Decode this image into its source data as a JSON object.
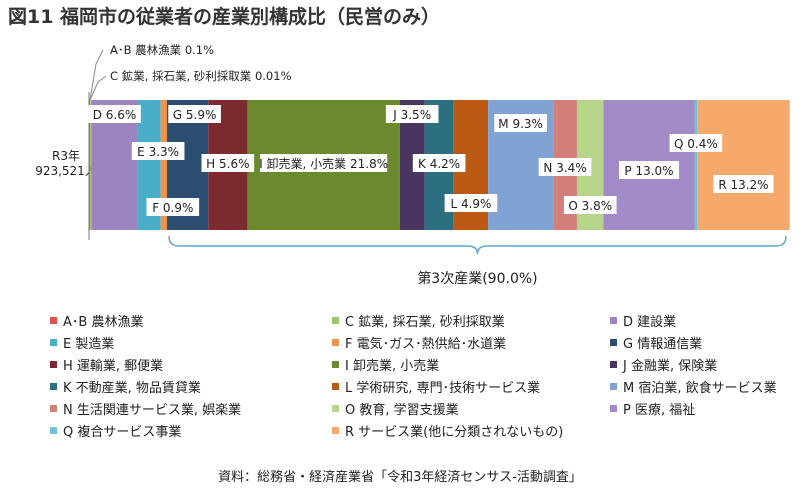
{
  "title": "図11  福岡市の従業者の産業別構成比（民営のみ）",
  "source": "資料：総務省・経済産業省「令和3年経済センサス-活動調査」",
  "colors": {
    "AB": "#d9534f",
    "C": "#9dc86b",
    "D": "#9b84bf",
    "E": "#4aaec8",
    "F": "#f0924b",
    "G": "#2d4e73",
    "H": "#7b2b2f",
    "I": "#6b8a2e",
    "J": "#4a3460",
    "K": "#2c6f80",
    "L": "#bb5a14",
    "M": "#7fa3d2",
    "N": "#d27e7b",
    "O": "#b7d48b",
    "P": "#a28bc8",
    "Q": "#74c3da",
    "R": "#f6a96b"
  },
  "chart_data": {
    "type": "bar",
    "orientation": "horizontal",
    "stacked": true,
    "categories": [
      "R3年"
    ],
    "category_total": "923,521人",
    "series": [
      {
        "key": "AB",
        "label": "A･B 農林漁業 0.1%",
        "value": 0.1
      },
      {
        "key": "C",
        "label": "C 鉱業, 採石業, 砂利採取業 0.01%",
        "value": 0.01
      },
      {
        "key": "D",
        "label": "D 6.6%",
        "value": 6.6
      },
      {
        "key": "E",
        "label": "E 3.3%",
        "value": 3.3
      },
      {
        "key": "F",
        "label": "F 0.9%",
        "value": 0.9
      },
      {
        "key": "G",
        "label": "G 5.9%",
        "value": 5.9
      },
      {
        "key": "H",
        "label": "H 5.6%",
        "value": 5.6
      },
      {
        "key": "I",
        "label": "I 卸売業, 小売業 21.8%",
        "value": 21.8
      },
      {
        "key": "J",
        "label": "J 3.5%",
        "value": 3.5
      },
      {
        "key": "K",
        "label": "K 4.2%",
        "value": 4.2
      },
      {
        "key": "L",
        "label": "L 4.9%",
        "value": 4.9
      },
      {
        "key": "M",
        "label": "M 9.3%",
        "value": 9.3
      },
      {
        "key": "N",
        "label": "N 3.4%",
        "value": 3.4
      },
      {
        "key": "O",
        "label": "O 3.8%",
        "value": 3.8
      },
      {
        "key": "P",
        "label": "P 13.0%",
        "value": 13.0
      },
      {
        "key": "Q",
        "label": "Q 0.4%",
        "value": 0.4
      },
      {
        "key": "R",
        "label": "R 13.2%",
        "value": 13.2
      }
    ],
    "bracket_label": "第3次産業(90.0%)",
    "xlim": [
      0,
      100
    ]
  },
  "legend": [
    {
      "key": "AB",
      "label": "A･B 農林漁業"
    },
    {
      "key": "C",
      "label": "C 鉱業, 採石業, 砂利採取業"
    },
    {
      "key": "D",
      "label": "D 建設業"
    },
    {
      "key": "E",
      "label": "E 製造業"
    },
    {
      "key": "F",
      "label": "F 電気･ガス･熱供給･水道業"
    },
    {
      "key": "G",
      "label": "G 情報通信業"
    },
    {
      "key": "H",
      "label": "H 運輸業, 郵便業"
    },
    {
      "key": "I",
      "label": "I 卸売業, 小売業"
    },
    {
      "key": "J",
      "label": "J 金融業, 保険業"
    },
    {
      "key": "K",
      "label": "K 不動産業, 物品賃貸業"
    },
    {
      "key": "L",
      "label": "L 学術研究, 専門･技術サービス業"
    },
    {
      "key": "M",
      "label": "M 宿泊業, 飲食サービス業"
    },
    {
      "key": "N",
      "label": "N 生活関連サービス業, 娯楽業"
    },
    {
      "key": "O",
      "label": "O 教育, 学習支援業"
    },
    {
      "key": "P",
      "label": "P 医療, 福祉"
    },
    {
      "key": "Q",
      "label": "Q 複合サービス事業"
    },
    {
      "key": "R",
      "label": "R サービス業(他に分類されないもの)"
    }
  ]
}
